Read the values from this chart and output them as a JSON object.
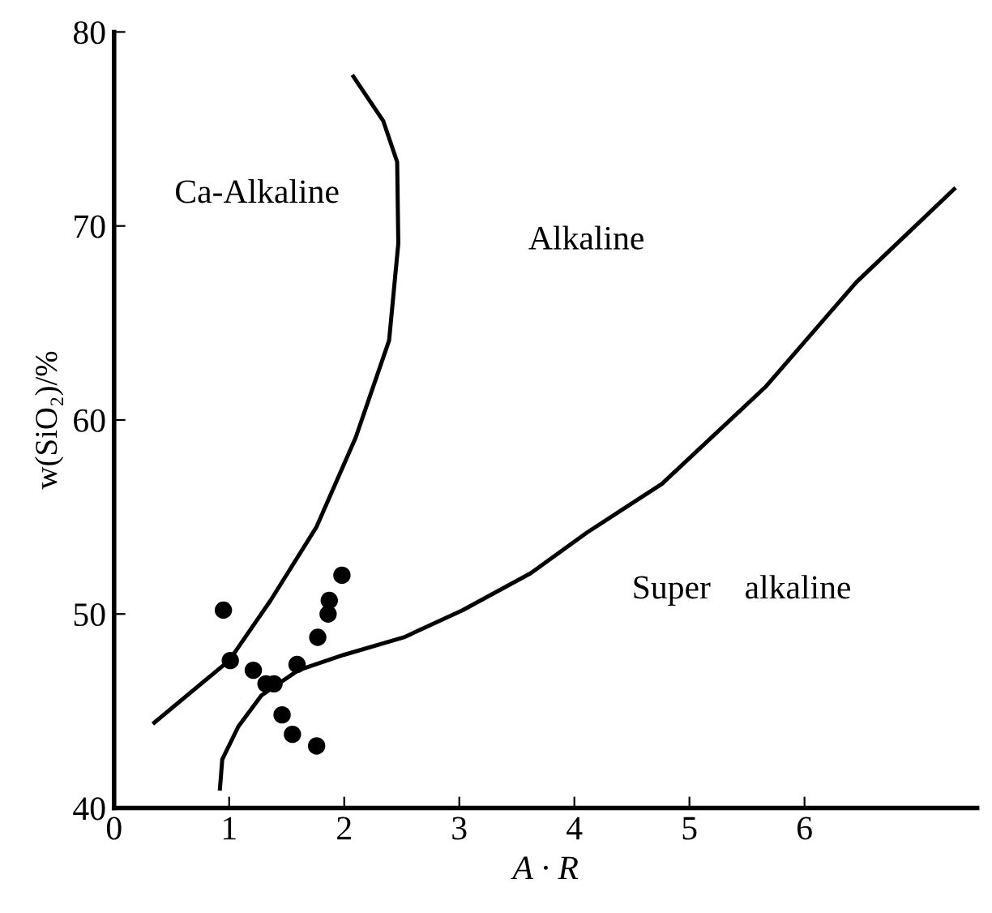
{
  "chart_data": {
    "type": "scatter",
    "xlabel": "A · R",
    "ylabel": "w(SiO₂)/%",
    "annotations": [
      "Ca-Alkaline",
      "Alkaline",
      "Super    alkaline"
    ],
    "series": [
      {
        "color": "#000000",
        "marker": "circle",
        "x": [
          0.95,
          1.01,
          1.21,
          1.32,
          1.39,
          1.59,
          1.77,
          1.55,
          1.46,
          1.76,
          1.86,
          1.98,
          1.87
        ],
        "values": [
          50.2,
          47.6,
          47.1,
          46.4,
          46.4,
          47.4,
          48.8,
          43.8,
          44.8,
          43.2,
          50.0,
          52.0,
          50.7
        ]
      },
      {
        "type": "line",
        "color": "#000000",
        "marker": "none",
        "x": [
          0.35,
          1.0,
          1.36,
          1.76,
          2.1,
          2.39,
          2.47,
          2.46,
          2.34,
          2.08
        ],
        "values": [
          44.4,
          47.6,
          50.7,
          54.5,
          59.1,
          64.1,
          69.1,
          73.3,
          75.4,
          77.7
        ]
      },
      {
        "type": "line",
        "color": "#000000",
        "marker": "none",
        "x": [
          0.92,
          0.94,
          1.08,
          1.28,
          1.6,
          2.0,
          2.52,
          3.03,
          3.62,
          4.11,
          4.76,
          5.66,
          6.45,
          7.3
        ],
        "values": [
          41.0,
          42.5,
          44.2,
          45.8,
          47.1,
          47.9,
          48.8,
          50.2,
          52.1,
          54.2,
          56.7,
          61.7,
          67.1,
          71.9
        ]
      }
    ],
    "xlim": [
      0,
      7.5
    ],
    "ylim": [
      40,
      80
    ],
    "xticks": [
      0,
      1,
      2,
      3,
      4,
      5,
      6
    ],
    "yticks": [
      40,
      50,
      60,
      70,
      80
    ],
    "grid": false,
    "legend": false
  }
}
